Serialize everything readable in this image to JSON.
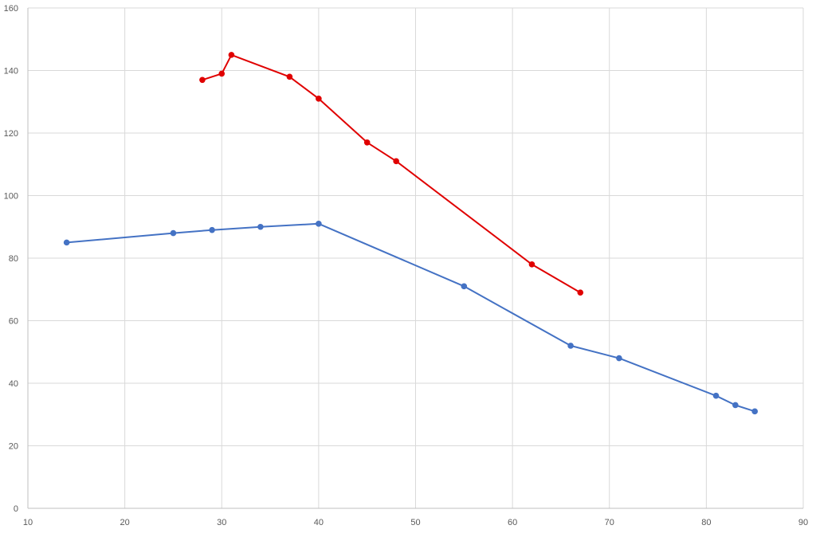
{
  "chart_data": {
    "type": "scatter",
    "mode": "lines+markers",
    "title": "",
    "xlabel": "",
    "ylabel": "",
    "xlim": [
      10,
      90
    ],
    "ylim": [
      0,
      160
    ],
    "x_ticks": [
      10,
      20,
      30,
      40,
      50,
      60,
      70,
      80,
      90
    ],
    "y_ticks": [
      0,
      20,
      40,
      60,
      80,
      100,
      120,
      140,
      160
    ],
    "grid": true,
    "legend": "none",
    "series": [
      {
        "color": "#4472c4",
        "points": [
          [
            14,
            85
          ],
          [
            25,
            88
          ],
          [
            29,
            89
          ],
          [
            34,
            90
          ],
          [
            40,
            91
          ],
          [
            55,
            71
          ],
          [
            66,
            52
          ],
          [
            71,
            48
          ],
          [
            81,
            36
          ],
          [
            83,
            33
          ],
          [
            85,
            31
          ]
        ]
      },
      {
        "color": "#e00000",
        "points": [
          [
            28,
            137
          ],
          [
            30,
            139
          ],
          [
            31,
            145
          ],
          [
            37,
            138
          ],
          [
            40,
            131
          ],
          [
            45,
            117
          ],
          [
            48,
            111
          ],
          [
            62,
            78
          ],
          [
            67,
            69
          ]
        ]
      }
    ]
  }
}
